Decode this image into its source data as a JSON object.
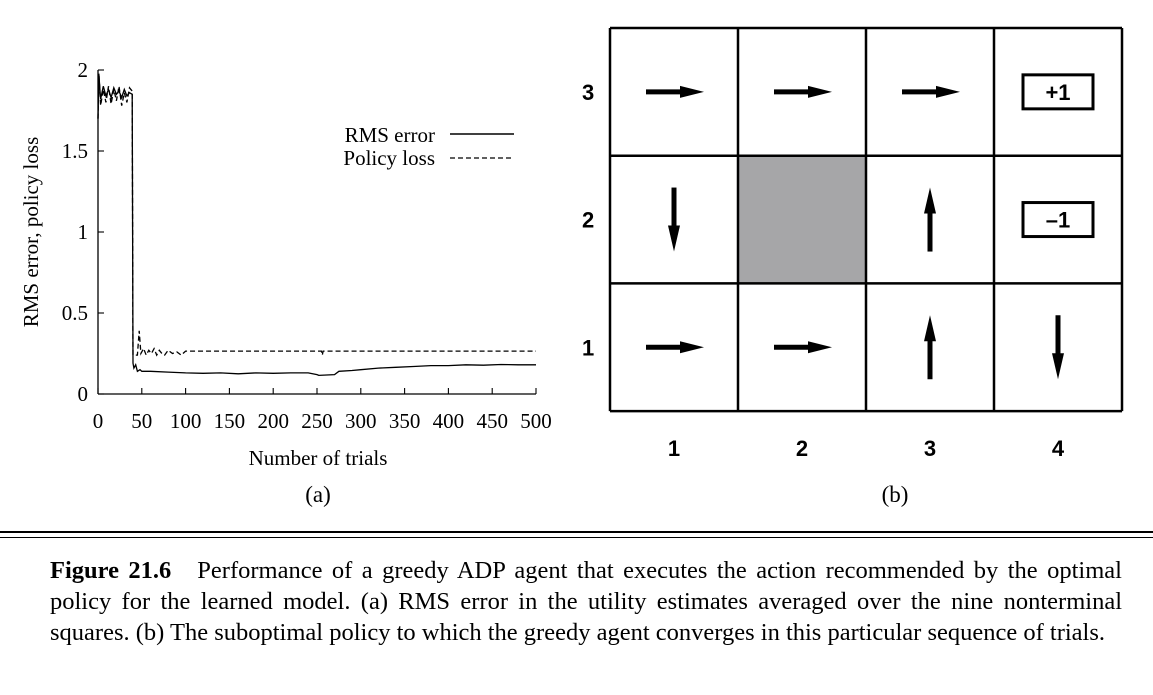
{
  "panel_a": {
    "ylabel": "RMS error, policy loss",
    "xlabel": "Number of trials",
    "sublabel": "(a)",
    "chart_data": {
      "type": "line",
      "xlabel": "Number of trials",
      "ylabel": "RMS error, policy loss",
      "xlim": [
        0,
        500
      ],
      "ylim": [
        0,
        2
      ],
      "xticks": [
        "0",
        "50",
        "100",
        "150",
        "200",
        "250",
        "300",
        "350",
        "400",
        "450",
        "500"
      ],
      "yticks": [
        "0",
        "0.5",
        "1",
        "1.5",
        "2"
      ],
      "grid": false,
      "legend_position": "top-right",
      "series": [
        {
          "name": "RMS error",
          "style": "solid",
          "x": [
            0,
            1,
            3,
            6,
            9,
            12,
            15,
            18,
            21,
            24,
            27,
            30,
            33,
            36,
            39,
            40,
            41,
            43,
            45,
            48,
            50,
            60,
            80,
            100,
            120,
            140,
            160,
            180,
            200,
            220,
            240,
            250,
            252,
            270,
            275,
            290,
            300,
            320,
            340,
            360,
            380,
            400,
            420,
            440,
            460,
            480,
            500
          ],
          "y": [
            1.7,
            1.97,
            1.82,
            1.9,
            1.84,
            1.88,
            1.83,
            1.89,
            1.85,
            1.87,
            1.83,
            1.88,
            1.84,
            1.86,
            1.85,
            0.19,
            0.16,
            0.18,
            0.14,
            0.15,
            0.14,
            0.14,
            0.135,
            0.13,
            0.128,
            0.13,
            0.125,
            0.13,
            0.128,
            0.13,
            0.13,
            0.12,
            0.115,
            0.12,
            0.14,
            0.145,
            0.15,
            0.16,
            0.165,
            0.17,
            0.175,
            0.175,
            0.18,
            0.178,
            0.182,
            0.18,
            0.18
          ]
        },
        {
          "name": "Policy loss",
          "style": "dashed",
          "x": [
            0,
            1,
            3,
            6,
            9,
            12,
            15,
            18,
            21,
            24,
            27,
            30,
            33,
            36,
            39,
            40,
            45,
            47,
            49,
            52,
            55,
            58,
            61,
            64,
            67,
            70,
            73,
            76,
            80,
            85,
            90,
            95,
            100,
            150,
            200,
            255,
            256,
            257,
            300,
            350,
            400,
            450,
            500
          ],
          "y": [
            1.7,
            1.98,
            1.78,
            1.88,
            1.8,
            1.9,
            1.79,
            1.88,
            1.81,
            1.9,
            1.78,
            1.86,
            1.8,
            1.89,
            1.87,
            0.24,
            0.24,
            0.39,
            0.25,
            0.28,
            0.24,
            0.27,
            0.25,
            0.28,
            0.24,
            0.27,
            0.25,
            0.24,
            0.27,
            0.25,
            0.26,
            0.24,
            0.265,
            0.265,
            0.265,
            0.265,
            0.24,
            0.265,
            0.265,
            0.265,
            0.265,
            0.265,
            0.265
          ]
        }
      ]
    }
  },
  "panel_b": {
    "sublabel": "(b)",
    "row_labels": [
      "3",
      "2",
      "1"
    ],
    "col_labels": [
      "1",
      "2",
      "3",
      "4"
    ],
    "terminal_plus": "+1",
    "terminal_minus": "–1",
    "obstacle_color": "#a6a6a8",
    "policy": [
      [
        "right",
        "right",
        "right",
        "terminal+1"
      ],
      [
        "down",
        "wall",
        "up",
        "terminal-1"
      ],
      [
        "right",
        "right",
        "up",
        "down"
      ]
    ]
  },
  "caption": {
    "label": "Figure 21.6",
    "text": "Performance of a greedy ADP agent that executes the action recommended by the optimal policy for the learned model. (a) RMS error in the utility estimates averaged over the nine nonterminal squares. (b) The suboptimal policy to which the greedy agent converges in this particular sequence of trials."
  }
}
